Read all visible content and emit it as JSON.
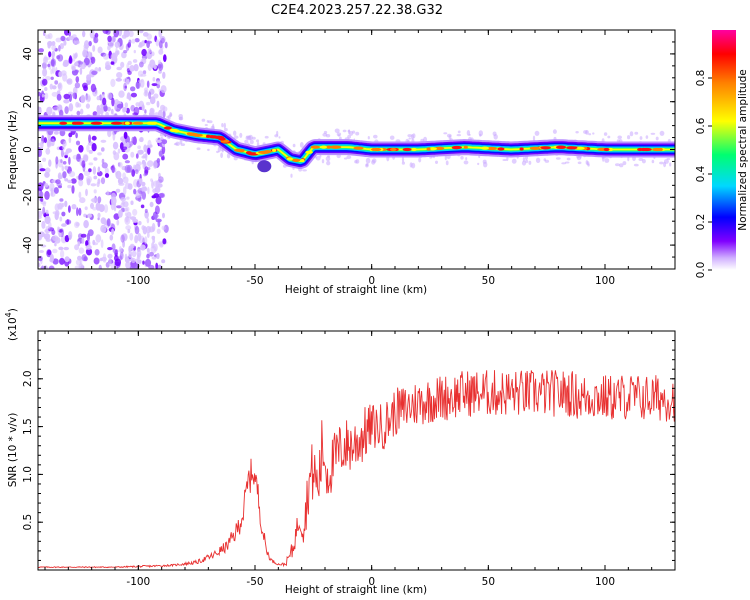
{
  "chart_data": [
    {
      "type": "heatmap",
      "title": "C2E4.2023.257.22.38.G32",
      "xlabel": "Height of straight line (km)",
      "ylabel": "Frequency (Hz)",
      "xlim": [
        -143,
        130
      ],
      "ylim": [
        -50,
        50
      ],
      "xticks": [
        -100,
        -50,
        0,
        50,
        100
      ],
      "yticks": [
        -40,
        -20,
        0,
        20,
        40
      ],
      "colorbar": {
        "label": "Normalized spectral amplitude",
        "range": [
          0,
          1
        ],
        "ticks": [
          "0.0",
          "0.2",
          "0.4",
          "0.6",
          "0.8"
        ],
        "colors": [
          "#ffffff",
          "#c8a0ff",
          "#8000ff",
          "#0000ff",
          "#00e0ff",
          "#00ff60",
          "#ffff00",
          "#ff8000",
          "#ff0000",
          "#ff00a0"
        ]
      },
      "ridge": {
        "x": [
          -143,
          -120,
          -100,
          -92,
          -85,
          -75,
          -65,
          -58,
          -50,
          -45,
          -40,
          -35,
          -30,
          -25,
          -20,
          -10,
          0,
          20,
          40,
          60,
          80,
          100,
          130
        ],
        "y": [
          11,
          11,
          11,
          11,
          8,
          6,
          5,
          0,
          -2,
          -1,
          0,
          -4,
          -5,
          1,
          1,
          1,
          0,
          0,
          1,
          0,
          1,
          0,
          0
        ]
      }
    },
    {
      "type": "line",
      "xlabel": "Height of straight line (km)",
      "ylabel": "SNR (10 * v/v)",
      "y_multiplier": "(x10",
      "y_multiplier_exp": "4",
      "y_multiplier_close": ")",
      "xlim": [
        -143,
        130
      ],
      "ylim": [
        0,
        2.5
      ],
      "xticks": [
        -100,
        -50,
        0,
        50,
        100
      ],
      "yticks": [
        "0.5",
        "1.0",
        "1.5",
        "2.0"
      ],
      "color": "#e83030",
      "series": [
        {
          "x": [
            -143,
            -130,
            -110,
            -95,
            -85,
            -75,
            -68,
            -62,
            -58,
            -55,
            -53,
            -51,
            -49,
            -47,
            -45,
            -43,
            -40,
            -37,
            -34,
            -31,
            -29,
            -27,
            -25,
            -23,
            -21,
            -19,
            -17,
            -15,
            -12,
            -8,
            -4,
            0,
            5,
            10,
            15,
            20,
            25,
            30,
            35,
            40,
            45,
            50,
            55,
            60,
            65,
            70,
            75,
            80,
            85,
            90,
            95,
            100,
            105,
            110,
            115,
            120,
            125,
            130
          ],
          "y": [
            0.03,
            0.03,
            0.03,
            0.04,
            0.05,
            0.08,
            0.15,
            0.25,
            0.4,
            0.6,
            0.9,
            1.05,
            0.85,
            0.45,
            0.2,
            0.1,
            0.06,
            0.06,
            0.2,
            0.55,
            0.45,
            0.9,
            1.05,
            0.85,
            1.3,
            1.0,
            1.1,
            1.2,
            1.3,
            1.3,
            1.4,
            1.5,
            1.5,
            1.65,
            1.7,
            1.75,
            1.78,
            1.8,
            1.82,
            1.85,
            1.85,
            1.85,
            1.85,
            1.85,
            1.85,
            1.85,
            1.85,
            1.85,
            1.85,
            1.8,
            1.82,
            1.8,
            1.8,
            1.82,
            1.8,
            1.8,
            1.8,
            1.8
          ],
          "noise": [
            0.005,
            0.005,
            0.005,
            0.01,
            0.01,
            0.02,
            0.04,
            0.06,
            0.1,
            0.15,
            0.2,
            0.15,
            0.15,
            0.1,
            0.05,
            0.02,
            0.01,
            0.02,
            0.1,
            0.15,
            0.2,
            0.3,
            0.35,
            0.3,
            0.4,
            0.3,
            0.3,
            0.3,
            0.3,
            0.3,
            0.3,
            0.25,
            0.25,
            0.25,
            0.25,
            0.25,
            0.25,
            0.25,
            0.25,
            0.25,
            0.25,
            0.25,
            0.25,
            0.25,
            0.25,
            0.25,
            0.25,
            0.25,
            0.25,
            0.25,
            0.25,
            0.25,
            0.25,
            0.25,
            0.25,
            0.25,
            0.25,
            0.25
          ]
        }
      ]
    }
  ]
}
